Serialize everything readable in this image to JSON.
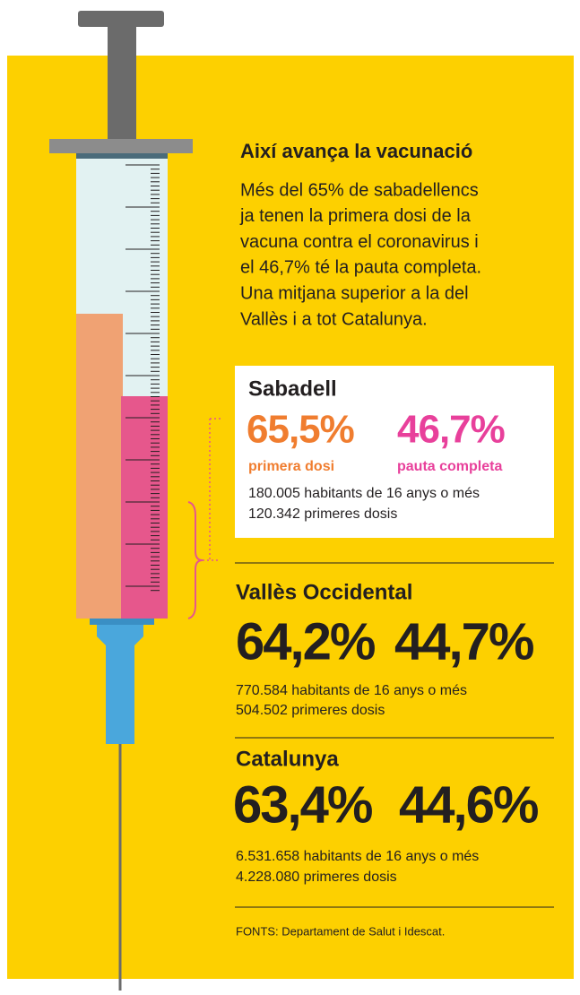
{
  "header": {
    "title": "Així avança la vacunació",
    "body": [
      "Més del 65% de sabadellencs",
      "ja tenen la primera dosi de la",
      "vacuna contra el coronavirus i",
      "el 46,7% té la pauta completa.",
      "Una mitjana superior a la del",
      "Vallès i a tot Catalunya."
    ]
  },
  "regions": [
    {
      "name": "Sabadell",
      "first": "65,5%",
      "first_label": "primera dosi",
      "full": "46,7%",
      "full_label": "pauta completa",
      "population": "180.005 habitants de 16 anys o més",
      "doses": "120.342 primeres dosis"
    },
    {
      "name": "Vallès Occidental",
      "first": "64,2%",
      "full": "44,7%",
      "population": "770.584 habitants de 16 anys o més",
      "doses": "504.502 primeres dosis"
    },
    {
      "name": "Catalunya",
      "first": "63,4%",
      "full": "44,6%",
      "population": "6.531.658 habitants de 16 anys o més",
      "doses": "4.228.080 primeres dosis"
    }
  ],
  "source": "FONTS: Departament de Salut i Idescat."
}
